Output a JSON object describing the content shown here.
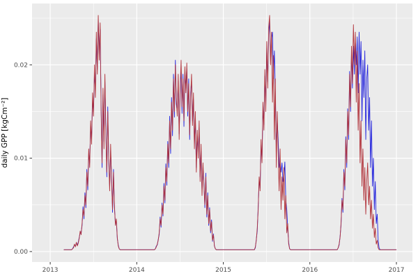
{
  "chart_data": {
    "type": "line",
    "title": "",
    "xlabel": "",
    "ylabel": "daily GPP [kgCm⁻²]",
    "x_tick_labels": [
      "2013",
      "2014",
      "2015",
      "2016",
      "2017"
    ],
    "x_ticks": [
      2013,
      2014,
      2015,
      2016,
      2017
    ],
    "x_minor": [
      2013.5,
      2014.5,
      2015.5,
      2016.5
    ],
    "y_tick_labels": [
      "0.00",
      "0.01",
      "0.02"
    ],
    "y_ticks": [
      0,
      0.01,
      0.02
    ],
    "y_minor": [
      0.005,
      0.015,
      0.025
    ],
    "x_range": [
      2012.79,
      2017.185
    ],
    "y_range": [
      -0.00112,
      0.02657
    ],
    "legend": "none",
    "grid": "on",
    "panel_bg": "#EBEBEB",
    "grid_major_color": "#FFFFFF",
    "grid_minor_color": "#FFFFFF",
    "axis_text_color": "#4D4D4D",
    "tick_mark_color": "#333333",
    "sample": {
      "t0": 2013.159,
      "dt": 0.011,
      "n": 350,
      "value_unit": 0.0001
    },
    "series": [
      {
        "name": "gpp-modelled-blue",
        "color": "#2323DC",
        "baseline": 2,
        "segments": [
          {
            "start": 9,
            "values": [
              3,
              5,
              7,
              6,
              9,
              7,
              10,
              15,
              20,
              20,
              28,
              48,
              35,
              63,
              47,
              88,
              66,
              105,
              95,
              135,
              120,
              162,
              150,
              192,
              172,
              228,
              195,
              248,
              212,
              238,
              158,
              90,
              168,
              118,
              182,
              132,
              80,
              155,
              95,
              70,
              108,
              80,
              42,
              88,
              47,
              30,
              33,
              14,
              7,
              3
            ]
          },
          {
            "start": 96,
            "values": [
              3,
              6,
              7,
              13,
              18,
              37,
              26,
              52,
              38,
              73,
              52,
              94,
              71,
              118,
              90,
              145,
              105,
              165,
              124,
              190,
              144,
              205,
              158,
              150,
              183,
              126,
              168,
              198,
              148,
              190,
              134,
              192,
              175,
              196,
              145,
              185,
              120,
              170,
              183,
              140,
              163,
              115,
              143,
              90,
              124,
              105,
              133,
              80,
              108,
              65,
              90,
              73,
              47,
              84,
              37,
              63,
              28,
              47,
              20,
              34,
              11,
              19,
              6,
              3
            ]
          },
          {
            "start": 201,
            "values": [
              4,
              13,
              22,
              48,
              76,
              68,
              114,
              100,
              152,
              136,
              188,
              156,
              218,
              182,
              232,
              248,
              205,
              228,
              235,
              185,
              215,
              170,
              110,
              140,
              120,
              90,
              95,
              85,
              95,
              75,
              80,
              96,
              55,
              45,
              25,
              10,
              3
            ]
          },
          {
            "start": 288,
            "values": [
              4,
              7,
              16,
              28,
              57,
              42,
              88,
              66,
              123,
              90,
              153,
              120,
              193,
              150,
              215,
              175,
              220,
              190,
              225,
              200,
              230,
              170,
              235,
              190,
              225,
              140,
              205,
              165,
              215,
              120,
              185,
              200,
              130,
              165,
              90,
              140,
              70,
              100,
              45,
              75,
              30,
              40,
              12,
              4
            ]
          }
        ]
      },
      {
        "name": "gpp-observed-red",
        "color": "#B03038",
        "baseline": 2,
        "segments": [
          {
            "start": 9,
            "values": [
              3,
              4,
              8,
              5,
              10,
              6,
              9,
              14,
              22,
              18,
              30,
              45,
              38,
              60,
              50,
              85,
              70,
              110,
              90,
              140,
              115,
              170,
              145,
              200,
              165,
              235,
              190,
              253,
              205,
              245,
              150,
              95,
              175,
              110,
              190,
              125,
              85,
              150,
              100,
              65,
              115,
              75,
              45,
              85,
              50,
              28,
              35,
              15,
              6,
              3
            ]
          },
          {
            "start": 96,
            "values": [
              3,
              5,
              8,
              12,
              20,
              35,
              28,
              50,
              40,
              70,
              55,
              90,
              75,
              115,
              95,
              140,
              110,
              160,
              130,
              185,
              150,
              200,
              165,
              145,
              190,
              120,
              175,
              205,
              155,
              185,
              140,
              198,
              170,
              202,
              150,
              180,
              125,
              165,
              190,
              135,
              170,
              110,
              150,
              85,
              130,
              100,
              140,
              75,
              115,
              60,
              95,
              70,
              50,
              80,
              40,
              60,
              30,
              45,
              22,
              32,
              12,
              18,
              6,
              3
            ]
          },
          {
            "start": 201,
            "values": [
              5,
              12,
              25,
              45,
              80,
              65,
              120,
              95,
              160,
              130,
              195,
              150,
              225,
              175,
              240,
              253,
              200,
              235,
              160,
              210,
              120,
              185,
              90,
              150,
              105,
              65,
              110,
              45,
              80,
              55,
              90,
              35,
              60,
              20,
              30,
              8,
              3
            ]
          },
          {
            "start": 288,
            "values": [
              4,
              8,
              15,
              30,
              55,
              45,
              85,
              70,
              120,
              95,
              150,
              125,
              190,
              155,
              220,
              180,
              243,
              200,
              235,
              160,
              215,
              130,
              180,
              95,
              140,
              70,
              110,
              55,
              90,
              40,
              75,
              95,
              50,
              70,
              35,
              55,
              25,
              40,
              15,
              25,
              8,
              12,
              4
            ]
          }
        ]
      }
    ]
  }
}
